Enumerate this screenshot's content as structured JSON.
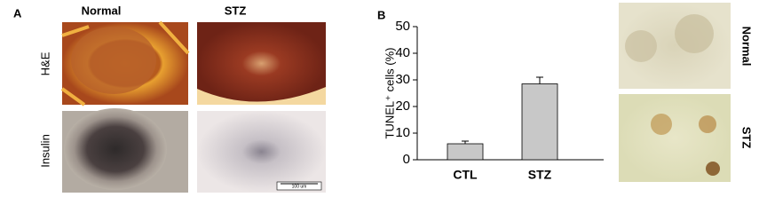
{
  "panel_a": {
    "label": "A",
    "columns": [
      "Normal",
      "STZ"
    ],
    "rows": [
      "H&E",
      "Insulin"
    ],
    "scale_bar": "100 um"
  },
  "chart_data": {
    "type": "bar",
    "panel_label": "B",
    "ylabel": "TUNEL⁺ cells (%)",
    "categories": [
      "CTL",
      "STZ"
    ],
    "values": [
      6,
      28.5
    ],
    "errors": [
      1,
      2.5
    ],
    "color": "#c8c8c8",
    "ylim": [
      0,
      50
    ],
    "yticks": [
      0,
      10,
      20,
      30,
      40,
      50
    ]
  },
  "side_images": {
    "labels": [
      "Normal",
      "STZ"
    ]
  }
}
